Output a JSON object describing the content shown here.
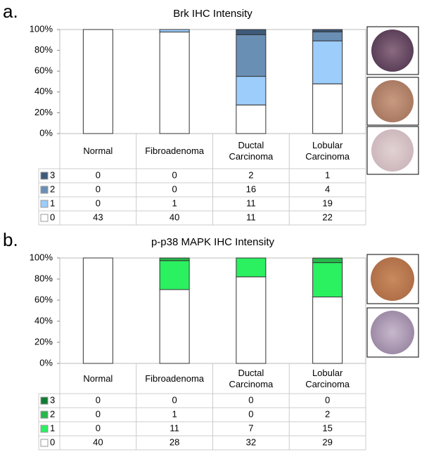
{
  "chart_data": [
    {
      "type": "bar",
      "stacked": true,
      "panel_label": "a.",
      "title": "Brk IHC Intensity",
      "categories": [
        "Normal",
        "Fibroadenoma",
        "Ductal Carcinoma",
        "Lobular Carcinoma"
      ],
      "series": [
        {
          "name": "3",
          "color": "#3e5b7a",
          "values": [
            0,
            0,
            5,
            2.2
          ],
          "counts": [
            0,
            0,
            2,
            1
          ]
        },
        {
          "name": "2",
          "color": "#6a8fb5",
          "values": [
            0,
            0,
            40,
            8.7
          ],
          "counts": [
            0,
            0,
            16,
            4
          ]
        },
        {
          "name": "1",
          "color": "#9ccdfb",
          "values": [
            0,
            2.4,
            27.5,
            41.3
          ],
          "counts": [
            0,
            1,
            11,
            19
          ]
        },
        {
          "name": "0",
          "color": "#ffffff",
          "values": [
            100,
            97.6,
            27.5,
            47.8
          ],
          "counts": [
            43,
            40,
            11,
            22
          ]
        }
      ],
      "ylim": [
        0,
        100
      ],
      "yticks": [
        {
          "value": 0,
          "label": "0%"
        },
        {
          "value": 20,
          "label": "20%"
        },
        {
          "value": 40,
          "label": "40%"
        },
        {
          "value": 60,
          "label": "60%"
        },
        {
          "value": 80,
          "label": "80%"
        },
        {
          "value": 100,
          "label": "100%"
        }
      ]
    },
    {
      "type": "bar",
      "stacked": true,
      "panel_label": "b.",
      "title": "p-p38 MAPK IHC Intensity",
      "categories": [
        "Normal",
        "Fibroadenoma",
        "Ductal Carcinoma",
        "Lobular Carcinoma"
      ],
      "series": [
        {
          "name": "3",
          "color": "#137a33",
          "values": [
            0,
            0,
            0,
            0
          ],
          "counts": [
            0,
            0,
            0,
            0
          ]
        },
        {
          "name": "2",
          "color": "#25b84a",
          "values": [
            0,
            2.5,
            0,
            4.3
          ],
          "counts": [
            0,
            1,
            0,
            2
          ]
        },
        {
          "name": "1",
          "color": "#2bf060",
          "values": [
            0,
            27.5,
            17.9,
            32.6
          ],
          "counts": [
            0,
            11,
            7,
            15
          ]
        },
        {
          "name": "0",
          "color": "#ffffff",
          "values": [
            100,
            70,
            82.1,
            63
          ],
          "counts": [
            40,
            28,
            32,
            29
          ]
        }
      ],
      "ylim": [
        0,
        100
      ],
      "yticks": [
        {
          "value": 0,
          "label": "0%"
        },
        {
          "value": 20,
          "label": "20%"
        },
        {
          "value": 40,
          "label": "40%"
        },
        {
          "value": 60,
          "label": "60%"
        },
        {
          "value": 80,
          "label": "80%"
        },
        {
          "value": 100,
          "label": "100%"
        }
      ]
    }
  ]
}
